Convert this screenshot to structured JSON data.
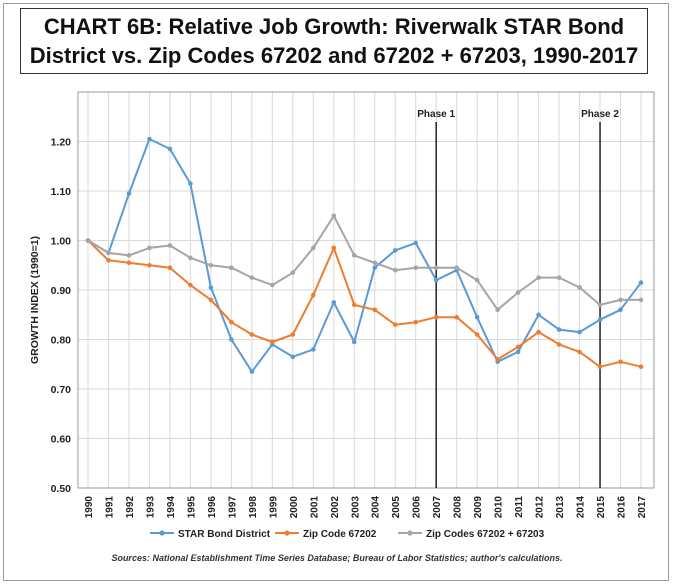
{
  "chart_data": {
    "type": "line",
    "title": "CHART 6B: Relative Job Growth: Riverwalk STAR Bond District vs. Zip Codes 67202 and 67202 + 67203, 1990-2017",
    "title_lines": [
      "CHART 6B: Relative Job Growth: Riverwalk STAR Bond",
      "District vs. Zip Codes 67202 and 67202 + 67203, 1990-2017"
    ],
    "xlabel": "",
    "ylabel": "GROWTH INDEX (1990=1)",
    "x": [
      "1990",
      "1991",
      "1992",
      "1993",
      "1994",
      "1995",
      "1996",
      "1997",
      "1998",
      "1999",
      "2000",
      "2001",
      "2002",
      "2003",
      "2004",
      "2005",
      "2006",
      "2007",
      "2008",
      "2009",
      "2010",
      "2011",
      "2012",
      "2013",
      "2014",
      "2015",
      "2016",
      "2017"
    ],
    "ylim": [
      0.5,
      1.3
    ],
    "yticks": [
      "0.50",
      "0.60",
      "0.70",
      "0.80",
      "0.90",
      "1.00",
      "1.10",
      "1.20"
    ],
    "grid": true,
    "legend_position": "bottom",
    "series": [
      {
        "name": "STAR Bond District",
        "color": "#5b9bd5",
        "values": [
          1.0,
          0.975,
          1.095,
          1.205,
          1.185,
          1.115,
          0.905,
          0.8,
          0.735,
          0.79,
          0.765,
          0.78,
          0.875,
          0.795,
          0.945,
          0.98,
          0.995,
          0.92,
          0.94,
          0.845,
          0.755,
          0.775,
          0.85,
          0.82,
          0.815,
          0.84,
          0.86,
          0.915
        ]
      },
      {
        "name": "Zip Code 67202",
        "color": "#ed7d31",
        "values": [
          1.0,
          0.96,
          0.955,
          0.95,
          0.945,
          0.91,
          0.88,
          0.835,
          0.81,
          0.795,
          0.81,
          0.89,
          0.985,
          0.87,
          0.86,
          0.83,
          0.835,
          0.845,
          0.845,
          0.81,
          0.76,
          0.785,
          0.815,
          0.79,
          0.775,
          0.745,
          0.755,
          0.745
        ]
      },
      {
        "name": "Zip Codes 67202 + 67203",
        "color": "#a5a5a5",
        "values": [
          1.0,
          0.975,
          0.97,
          0.985,
          0.99,
          0.965,
          0.95,
          0.945,
          0.925,
          0.91,
          0.935,
          0.985,
          1.05,
          0.97,
          0.955,
          0.94,
          0.945,
          0.945,
          0.945,
          0.92,
          0.86,
          0.895,
          0.925,
          0.925,
          0.905,
          0.87,
          0.88,
          0.88
        ]
      }
    ],
    "annotations": [
      {
        "label": "Phase 1",
        "x": "2007"
      },
      {
        "label": "Phase 2",
        "x": "2015"
      }
    ]
  },
  "source_note": "Sources: National Establishment Time Series Database; Bureau of Labor Statistics; author's calculations."
}
